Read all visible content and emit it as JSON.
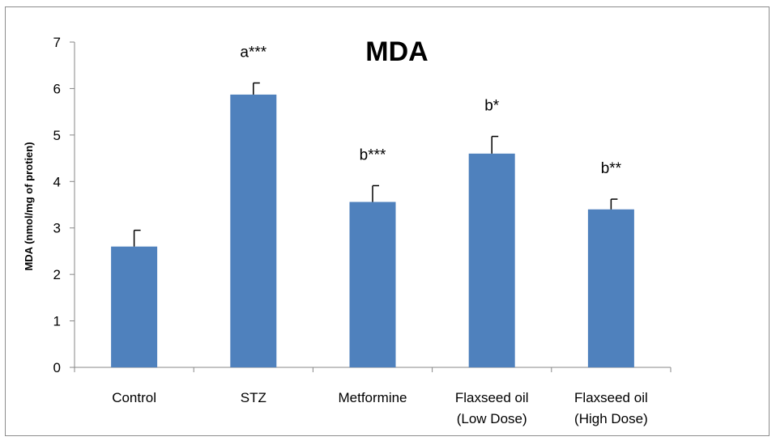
{
  "chart_data": {
    "type": "bar",
    "title": "MDA",
    "ylabel": "MDA (nmol/mg of protien)",
    "xlabel": "",
    "ylim": [
      0,
      7
    ],
    "yticks": [
      0,
      1,
      2,
      3,
      4,
      5,
      6,
      7
    ],
    "grid": false,
    "legend": "none",
    "bar_color": "#4f81bd",
    "categories": [
      [
        "Control"
      ],
      [
        "STZ"
      ],
      [
        "Metformine"
      ],
      [
        "Flaxseed oil",
        "(Low Dose)"
      ],
      [
        "Flaxseed oil",
        "(High Dose)"
      ]
    ],
    "values": [
      2.6,
      5.87,
      3.56,
      4.6,
      3.4
    ],
    "errors": [
      0.35,
      0.25,
      0.35,
      0.37,
      0.22
    ],
    "annotations": [
      "",
      "a***",
      "b***",
      "b*",
      "b**"
    ]
  }
}
